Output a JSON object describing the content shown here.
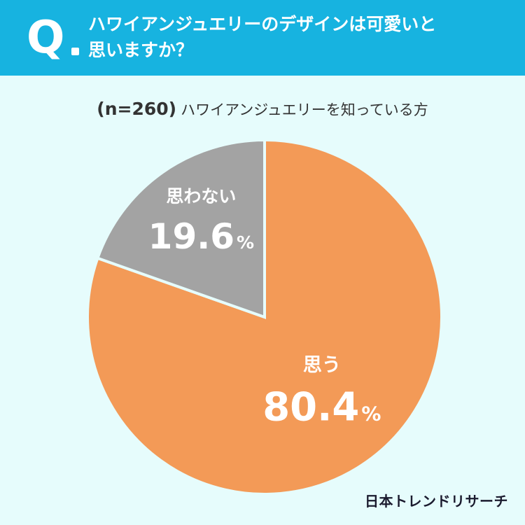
{
  "header": {
    "q_mark": "Q",
    "question": "ハワイアンジュエリーのデザインは可愛いと\n思いますか？"
  },
  "subtitle": {
    "n_label": "(n=260)",
    "text": "ハワイアンジュエリーを知っている方"
  },
  "chart_data": {
    "type": "pie",
    "title": "ハワイアンジュエリーのデザインは可愛いと思いますか？",
    "sample": "(n=260)",
    "slices": [
      {
        "label": "思う",
        "value": 80.4,
        "display": "80.4",
        "unit": "%",
        "color": "#f39a57"
      },
      {
        "label": "思わない",
        "value": 19.6,
        "display": "19.6",
        "unit": "%",
        "color": "#a3a3a3"
      }
    ],
    "start": "top",
    "direction": "clockwise",
    "separator_color": "#e6fcfc"
  },
  "brand": "日本トレンドリサーチ"
}
